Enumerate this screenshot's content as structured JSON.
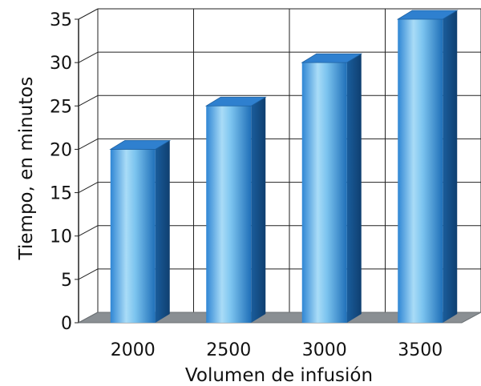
{
  "chart_data": {
    "type": "bar",
    "categories": [
      "2000",
      "2500",
      "3000",
      "3500"
    ],
    "series": [
      {
        "values": [
          20,
          25,
          30,
          35
        ]
      }
    ],
    "xlabel": "Volumen de infusión",
    "ylabel": "Tiempo, en minutos",
    "ylim": [
      0,
      35
    ],
    "yticks": [
      0,
      5,
      10,
      15,
      20,
      25,
      30,
      35
    ],
    "grid": true,
    "three_d": true,
    "colors": {
      "bar_light": "#a9dcf7",
      "bar_mid": "#4da6e6",
      "bar_dark": "#1f6fb8",
      "bar_side": "#134f8a",
      "bar_top": "#2f80cf",
      "floor": "#8a8f93",
      "grid": "#222222",
      "back_wall": "#ffffff"
    }
  }
}
